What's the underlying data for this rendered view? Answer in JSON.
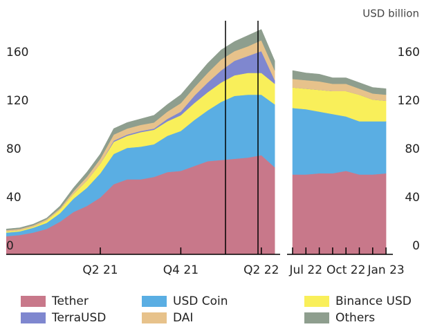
{
  "chart_data": {
    "type": "area",
    "stacked": true,
    "y_axis_label": "USD  billion",
    "categories": [
      null,
      null,
      null,
      null,
      null,
      null,
      null,
      "Q2 21",
      null,
      null,
      null,
      null,
      null,
      "Q4 21",
      null,
      null,
      null,
      null,
      null,
      "Q2 22",
      null,
      null,
      "Jul 22",
      null,
      null,
      "Oct 22",
      null,
      null,
      "Jan 23"
    ],
    "ylim": [
      0,
      190
    ],
    "yticks": [
      0,
      40,
      80,
      120,
      160
    ],
    "grid": false,
    "legend": "bottom",
    "series": [
      {
        "name": "Tether",
        "color": "#c8788a",
        "values": [
          15,
          16,
          18,
          21,
          27,
          35,
          40,
          47,
          58,
          62,
          62,
          64,
          68,
          69,
          73,
          77,
          78,
          79,
          80,
          82,
          72,
          66,
          66,
          67,
          67,
          69,
          66,
          66,
          67
        ]
      },
      {
        "name": "USD Coin",
        "color": "#5aaee3",
        "values": [
          3,
          3,
          4,
          5,
          7,
          11,
          15,
          20,
          25,
          26,
          27,
          27,
          30,
          33,
          38,
          42,
          48,
          52,
          52,
          50,
          52,
          55,
          54,
          51,
          49,
          45,
          44,
          44,
          43
        ]
      },
      {
        "name": "Binance USD",
        "color": "#f9ef5a",
        "values": [
          1,
          1,
          1,
          2,
          3,
          4,
          6,
          8,
          10,
          10,
          12,
          12,
          12,
          13,
          14,
          15,
          16,
          17,
          18,
          18,
          17,
          17,
          17,
          18,
          19,
          21,
          22,
          18,
          17
        ]
      },
      {
        "name": "TerraUSD",
        "color": "#7f87cf",
        "values": [
          0,
          0,
          0,
          0,
          0,
          0,
          0,
          0,
          1,
          1,
          1,
          1,
          2,
          3,
          6,
          8,
          10,
          12,
          14,
          18,
          3,
          0,
          0,
          0,
          0,
          0,
          0,
          0,
          0
        ]
      },
      {
        "name": "DAI",
        "color": "#e7c28b",
        "values": [
          1,
          1,
          1,
          1,
          1,
          2,
          3,
          4,
          5,
          5,
          5,
          5,
          6,
          7,
          7,
          8,
          9,
          8,
          8,
          9,
          8,
          7,
          7,
          7,
          6,
          6,
          5,
          5,
          5
        ]
      },
      {
        "name": "Others",
        "color": "#8e9e8e",
        "values": [
          1,
          1,
          1,
          1,
          2,
          3,
          4,
          4,
          5,
          5,
          5,
          6,
          6,
          7,
          7,
          8,
          8,
          8,
          9,
          9,
          8,
          7,
          6,
          6,
          5,
          5,
          5,
          5,
          5
        ]
      }
    ]
  }
}
